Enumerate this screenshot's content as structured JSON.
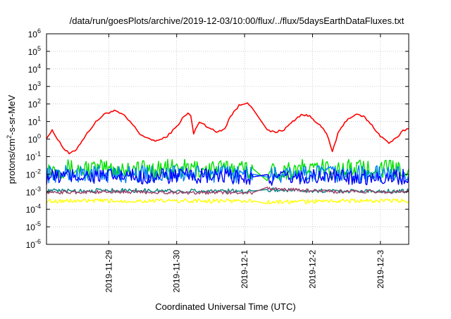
{
  "chart_data": {
    "type": "line",
    "title": "/data/run/goesPlots/archive/2019-12-03/10:00/flux/../flux/5daysEarthDataFluxes.txt",
    "xlabel": "Coordinated Universal Time (UTC)",
    "ylabel": {
      "prefix": "protons/cm",
      "sup": "2",
      "suffix": "-s-sr-MeV"
    },
    "y_scale": "log",
    "ylim": [
      1e-06,
      1000000.0
    ],
    "y_ticks": [
      {
        "value": 1e-06,
        "exp": "-6"
      },
      {
        "value": 1e-05,
        "exp": "-5"
      },
      {
        "value": 0.0001,
        "exp": "-4"
      },
      {
        "value": 0.001,
        "exp": "-3"
      },
      {
        "value": 0.01,
        "exp": "-2"
      },
      {
        "value": 0.1,
        "exp": "-1"
      },
      {
        "value": 1,
        "exp": "0"
      },
      {
        "value": 10,
        "exp": "1"
      },
      {
        "value": 100,
        "exp": "2"
      },
      {
        "value": 1000,
        "exp": "3"
      },
      {
        "value": 10000,
        "exp": "4"
      },
      {
        "value": 100000,
        "exp": "5"
      },
      {
        "value": 1000000,
        "exp": "6"
      }
    ],
    "tick_base": "10",
    "xlim": [
      "2019-11-28T02:00",
      "2019-12-03T10:00"
    ],
    "x_ticks": [
      "2019-11-29",
      "2019-11-30",
      "2019-12-1",
      "2019-12-2",
      "2019-12-3"
    ],
    "x_tick_values": [
      "2019-11-29T00:00",
      "2019-11-30T00:00",
      "2019-12-01T00:00",
      "2019-12-02T00:00",
      "2019-12-03T00:00"
    ],
    "grid": true,
    "legend": "none",
    "data_gap": [
      "2019-12-01T03:00",
      "2019-12-01T08:00"
    ],
    "series": [
      {
        "color": "#ff0000",
        "x": [
          "2019-11-28T02:00",
          "2019-11-28T04:00",
          "2019-11-28T06:00",
          "2019-11-28T08:00",
          "2019-11-28T10:00",
          "2019-11-28T12:00",
          "2019-11-28T14:00",
          "2019-11-28T17:00",
          "2019-11-28T20:00",
          "2019-11-28T23:00",
          "2019-11-29T02:00",
          "2019-11-29T05:00",
          "2019-11-29T08:00",
          "2019-11-29T11:00",
          "2019-11-29T14:00",
          "2019-11-29T17:00",
          "2019-11-29T20:00",
          "2019-11-30T00:00",
          "2019-11-30T02:00",
          "2019-11-30T04:00",
          "2019-11-30T05:00",
          "2019-11-30T06:00",
          "2019-11-30T08:00",
          "2019-11-30T11:00",
          "2019-11-30T14:00",
          "2019-11-30T17:00",
          "2019-11-30T19:00",
          "2019-11-30T22:00",
          "2019-12-01T01:00",
          "2019-12-01T03:00",
          "2019-12-01T08:00",
          "2019-12-01T11:00",
          "2019-12-01T14:00",
          "2019-12-01T17:00",
          "2019-12-01T20:00",
          "2019-12-01T23:00",
          "2019-12-02T02:00",
          "2019-12-02T05:00",
          "2019-12-02T07:00",
          "2019-12-02T09:00",
          "2019-12-02T12:00",
          "2019-12-02T15:00",
          "2019-12-02T18:00",
          "2019-12-02T21:00",
          "2019-12-03T00:00",
          "2019-12-03T03:00",
          "2019-12-03T06:00",
          "2019-12-03T08:00",
          "2019-12-03T10:00"
        ],
        "values": [
          1.2,
          3,
          1,
          0.3,
          0.15,
          0.2,
          0.6,
          3,
          12,
          30,
          40,
          25,
          8,
          2,
          1,
          0.8,
          1.2,
          5,
          15,
          30,
          20,
          2,
          10,
          5,
          2.5,
          4,
          20,
          80,
          130,
          50,
          3,
          2.5,
          3.5,
          10,
          25,
          20,
          8,
          2,
          0.2,
          2,
          12,
          25,
          20,
          6,
          1.5,
          0.6,
          1.2,
          3,
          4
        ]
      },
      {
        "color": "#00e000",
        "x": [
          "2019-11-28T02:00",
          "2019-11-28T14:00",
          "2019-11-29T02:00",
          "2019-11-29T14:00",
          "2019-11-30T02:00",
          "2019-11-30T14:00",
          "2019-12-01T03:00",
          "2019-12-01T08:00",
          "2019-12-01T20:00",
          "2019-12-02T08:00",
          "2019-12-02T20:00",
          "2019-12-03T10:00"
        ],
        "values": [
          0.02,
          0.02,
          0.02,
          0.02,
          0.02,
          0.02,
          0.02,
          0.013,
          0.02,
          0.02,
          0.02,
          0.02
        ]
      },
      {
        "color": "#0080ff",
        "x": [
          "2019-11-28T02:00",
          "2019-11-28T14:00",
          "2019-11-29T02:00",
          "2019-11-29T14:00",
          "2019-11-30T02:00",
          "2019-11-30T14:00",
          "2019-12-01T03:00",
          "2019-12-01T08:00",
          "2019-12-01T20:00",
          "2019-12-02T08:00",
          "2019-12-02T20:00",
          "2019-12-03T10:00"
        ],
        "values": [
          0.01,
          0.01,
          0.01,
          0.01,
          0.01,
          0.01,
          0.01,
          0.008,
          0.01,
          0.01,
          0.01,
          0.01
        ]
      },
      {
        "color": "#0000ff",
        "x": [
          "2019-11-28T02:00",
          "2019-11-28T14:00",
          "2019-11-29T02:00",
          "2019-11-29T14:00",
          "2019-11-30T02:00",
          "2019-11-30T14:00",
          "2019-12-01T03:00",
          "2019-12-01T08:00",
          "2019-12-01T20:00",
          "2019-12-02T08:00",
          "2019-12-02T20:00",
          "2019-12-03T10:00"
        ],
        "values": [
          0.007,
          0.008,
          0.007,
          0.007,
          0.008,
          0.007,
          0.007,
          0.005,
          0.007,
          0.007,
          0.007,
          0.007
        ]
      },
      {
        "color": "#ffff00",
        "x": [
          "2019-11-28T02:00",
          "2019-11-29T02:00",
          "2019-11-30T02:00",
          "2019-12-01T03:00",
          "2019-12-01T08:00",
          "2019-12-02T08:00",
          "2019-12-03T10:00"
        ],
        "values": [
          0.0003,
          0.0003,
          0.0003,
          0.0003,
          0.00025,
          0.0003,
          0.0003
        ]
      },
      {
        "color": "#008080",
        "x": [
          "2019-11-28T02:00",
          "2019-11-29T02:00",
          "2019-11-30T02:00",
          "2019-12-01T03:00",
          "2019-12-01T08:00",
          "2019-12-02T08:00",
          "2019-12-03T10:00"
        ],
        "values": [
          0.0011,
          0.0012,
          0.0011,
          0.0011,
          0.0013,
          0.0011,
          0.0011
        ]
      },
      {
        "color": "#a0406a",
        "x": [
          "2019-11-28T02:00",
          "2019-11-29T02:00",
          "2019-11-30T02:00",
          "2019-12-01T03:00",
          "2019-12-01T08:00",
          "2019-12-02T08:00",
          "2019-12-03T10:00"
        ],
        "values": [
          0.0009,
          0.001,
          0.0009,
          0.0009,
          0.0015,
          0.001,
          0.001
        ]
      }
    ]
  }
}
